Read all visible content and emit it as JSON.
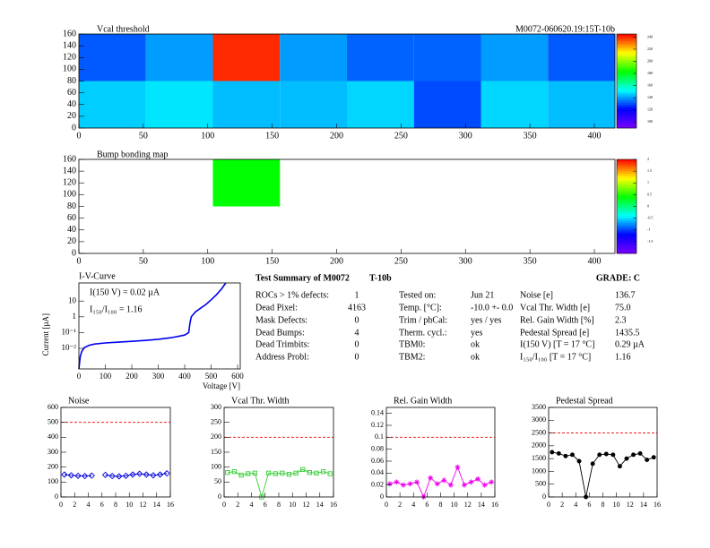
{
  "chart_data": [
    {
      "type": "heatmap",
      "title": "Vcal threshold",
      "subtitle": "M0072-060620.19:15T-10b",
      "xbins": [
        0,
        52,
        104,
        156,
        208,
        260,
        312,
        364,
        416
      ],
      "ybins": [
        0,
        80,
        160
      ],
      "z": [
        [
          146,
          149,
          144,
          144,
          147,
          130,
          147,
          144
        ],
        [
          132,
          140,
          240,
          140,
          133,
          133,
          140,
          132
        ]
      ],
      "zlim": [
        90,
        245
      ],
      "zticks": [
        100,
        120,
        140,
        160,
        180,
        200,
        220,
        240
      ],
      "xlim": [
        0,
        416
      ],
      "xticks": [
        0,
        50,
        100,
        150,
        200,
        250,
        300,
        350,
        400
      ],
      "ylim": [
        0,
        160
      ],
      "yticks": [
        0,
        20,
        40,
        60,
        80,
        100,
        120,
        140,
        160
      ]
    },
    {
      "type": "heatmap",
      "title": "Bump bonding map",
      "xbins": [
        0,
        52,
        104,
        156,
        208,
        260,
        312,
        364,
        416
      ],
      "ybins": [
        0,
        80,
        160
      ],
      "z": [
        [
          null,
          null,
          null,
          null,
          null,
          null,
          null,
          null
        ],
        [
          null,
          null,
          0.4,
          null,
          null,
          null,
          null,
          null
        ]
      ],
      "zlim": [
        -2,
        2
      ],
      "zticks": [
        -1.5,
        -1,
        -0.5,
        0,
        0.5,
        1,
        1.5,
        2
      ],
      "xlim": [
        0,
        416
      ],
      "xticks": [
        0,
        50,
        100,
        150,
        200,
        250,
        300,
        350,
        400
      ],
      "ylim": [
        0,
        160
      ],
      "yticks": [
        0,
        20,
        40,
        60,
        80,
        100,
        120,
        140,
        160
      ]
    },
    {
      "type": "line",
      "title": "I-V-Curve",
      "x_label": "Voltage [V]",
      "y_label": "Current [µA]",
      "log_y": true,
      "color": "#0000ee",
      "annotations": [
        "I(150 V) = 0.02 µA",
        "I₁₅₀/I₁₀₀ = 1.16"
      ],
      "x": [
        0,
        5,
        10,
        20,
        40,
        60,
        100,
        150,
        200,
        250,
        300,
        350,
        400,
        415,
        420,
        425,
        440,
        460,
        480,
        500,
        520,
        540,
        555
      ],
      "values": [
        0.0005,
        0.003,
        0.006,
        0.011,
        0.016,
        0.019,
        0.022,
        0.025,
        0.028,
        0.032,
        0.038,
        0.048,
        0.07,
        0.1,
        0.4,
        1,
        2,
        3.5,
        6,
        12,
        25,
        60,
        140
      ],
      "xlim": [
        0,
        610
      ],
      "xticks": [
        0,
        100,
        200,
        300,
        400,
        500,
        600
      ],
      "ylim": [
        0.0005,
        140
      ],
      "yticks": [
        {
          "value": 0.01,
          "label": "10⁻²"
        },
        {
          "value": 0.1,
          "label": "10⁻¹"
        },
        1,
        10
      ]
    },
    {
      "type": "line",
      "title": "Noise",
      "color": "#0000dd",
      "marker": "diamond",
      "ref_line": 500,
      "x": [
        0.5,
        1.5,
        2.5,
        3.5,
        4.5,
        5.5,
        6.5,
        7.5,
        8.5,
        9.5,
        10.5,
        11.5,
        12.5,
        13.5,
        14.5,
        15.5
      ],
      "values": [
        150,
        145,
        142,
        140,
        143,
        null,
        148,
        140,
        138,
        142,
        150,
        155,
        150,
        145,
        150,
        158
      ],
      "xlim": [
        0,
        16
      ],
      "xticks": [
        0,
        2,
        4,
        6,
        8,
        10,
        12,
        14,
        16
      ],
      "ylim": [
        0,
        600
      ],
      "yticks": [
        0,
        100,
        200,
        300,
        400,
        500,
        600
      ]
    },
    {
      "type": "line",
      "title": "Vcal Thr. Width",
      "color": "#33cc33",
      "marker": "square",
      "ref_line": 200,
      "x": [
        0.5,
        1.5,
        2.5,
        3.5,
        4.5,
        5.5,
        6.5,
        7.5,
        8.5,
        9.5,
        10.5,
        11.5,
        12.5,
        13.5,
        14.5,
        15.5
      ],
      "values": [
        82,
        85,
        73,
        78,
        80,
        0,
        80,
        78,
        80,
        76,
        80,
        92,
        82,
        80,
        85,
        78
      ],
      "xlim": [
        0,
        16
      ],
      "xticks": [
        0,
        2,
        4,
        6,
        8,
        10,
        12,
        14,
        16
      ],
      "ylim": [
        0,
        300
      ],
      "yticks": [
        0,
        50,
        100,
        150,
        200,
        250,
        300
      ]
    },
    {
      "type": "line",
      "title": "Rel. Gain Width",
      "color": "#ee00ee",
      "marker": "star",
      "ref_line": 0.1,
      "x": [
        0.5,
        1.5,
        2.5,
        3.5,
        4.5,
        5.5,
        6.5,
        7.5,
        8.5,
        9.5,
        10.5,
        11.5,
        12.5,
        13.5,
        14.5,
        15.5
      ],
      "values": [
        0.022,
        0.025,
        0.02,
        0.022,
        0.025,
        0,
        0.032,
        0.022,
        0.028,
        0.02,
        0.05,
        0.02,
        0.025,
        0.03,
        0.02,
        0.025
      ],
      "xlim": [
        0,
        16
      ],
      "xticks": [
        0,
        2,
        4,
        6,
        8,
        10,
        12,
        14,
        16
      ],
      "ylim": [
        0,
        0.15
      ],
      "yticks": [
        0,
        0.02,
        0.04,
        0.06,
        0.08,
        0.1,
        0.12,
        0.14
      ]
    },
    {
      "type": "line",
      "title": "Pedestal Spread",
      "color": "#000000",
      "marker": "circle",
      "ref_line": 2500,
      "x": [
        0.5,
        1.5,
        2.5,
        3.5,
        4.5,
        5.5,
        6.5,
        7.5,
        8.5,
        9.5,
        10.5,
        11.5,
        12.5,
        13.5,
        14.5,
        15.5
      ],
      "values": [
        1750,
        1700,
        1600,
        1650,
        1400,
        0,
        1300,
        1650,
        1680,
        1650,
        1200,
        1500,
        1650,
        1700,
        1450,
        1550
      ],
      "xlim": [
        0,
        16
      ],
      "xticks": [
        0,
        2,
        4,
        6,
        8,
        10,
        12,
        14,
        16
      ],
      "ylim": [
        0,
        3500
      ],
      "yticks": [
        0,
        500,
        1000,
        1500,
        2000,
        2500,
        3000,
        3500
      ]
    }
  ],
  "summary": {
    "title": "Test Summary of M0072",
    "temp": "T-10b",
    "grade": "GRADE:  C",
    "columns": [
      {
        "labels": [
          "ROCs > 1% defects:",
          "Dead Pixel:",
          "Mask Defects:",
          "Dead Bumps:",
          "Dead Trimbits:",
          "Address Probl:"
        ],
        "values": [
          "1",
          "4163",
          "0",
          "4",
          "0",
          "0"
        ]
      },
      {
        "labels": [
          "Tested on:",
          "Temp. [°C]:",
          "Trim / phCal:",
          "Therm. cycl.:",
          "TBM0:",
          "TBM2:"
        ],
        "values": [
          "Jun 21",
          "-10.0 +- 0.0",
          "yes / yes",
          "yes",
          "ok",
          "ok"
        ]
      },
      {
        "labels": [
          "Noise [e]",
          "Vcal Thr. Width [e]",
          "Rel. Gain Width [%]",
          "Pedestal Spread [e]",
          "I(150 V) [T = 17 °C]",
          "I₁₅₀/I₁₀₀  [T = 17 °C]"
        ],
        "values": [
          "136.7",
          "75.0",
          "2.3",
          "1435.5",
          "0.29 µA",
          "1.16"
        ]
      }
    ]
  }
}
